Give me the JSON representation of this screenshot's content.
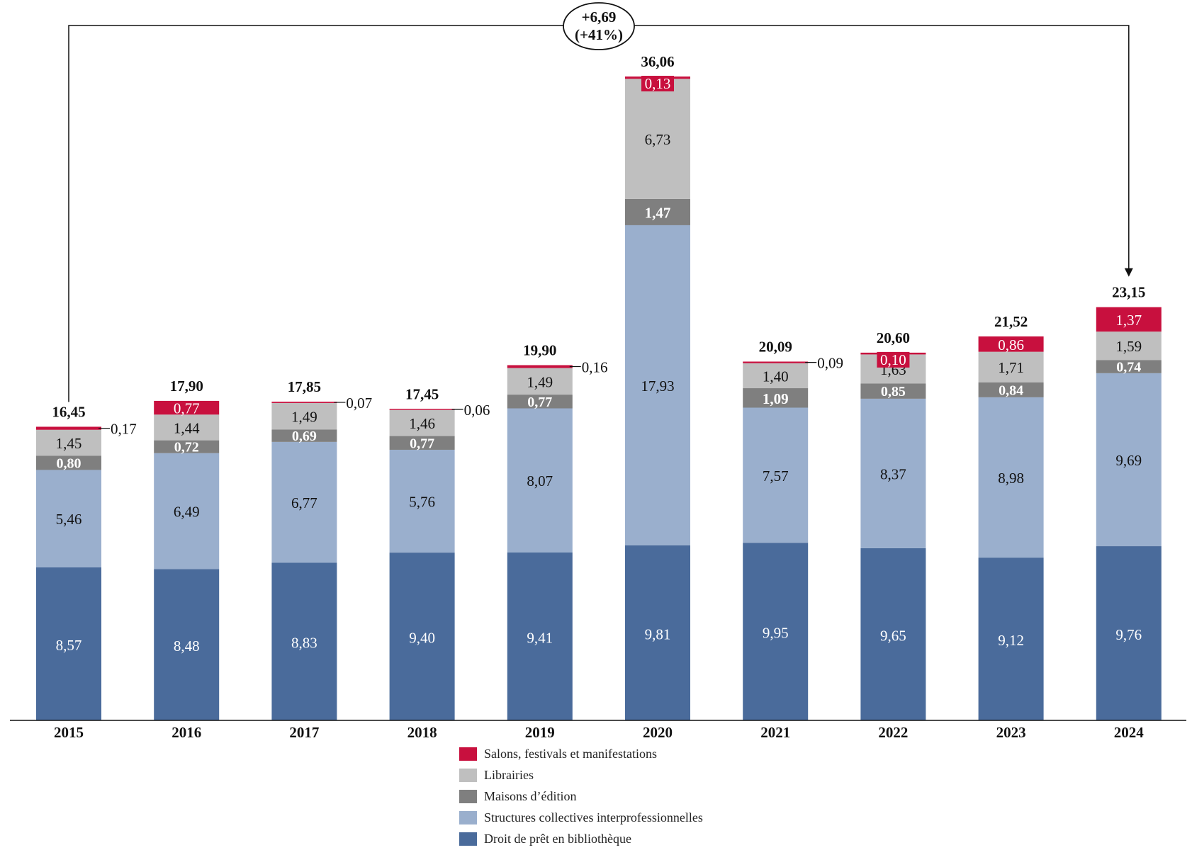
{
  "chart_data": {
    "type": "bar",
    "stacked": true,
    "title": "",
    "xlabel": "",
    "ylabel": "",
    "ylim": [
      0,
      37
    ],
    "grid": false,
    "legend_position": "bottom-center",
    "categories": [
      "2015",
      "2016",
      "2017",
      "2018",
      "2019",
      "2020",
      "2021",
      "2022",
      "2023",
      "2024"
    ],
    "series": [
      {
        "name": "Droit de prêt en bibliothèque",
        "color": "#4a6b9b",
        "values": [
          8.57,
          8.48,
          8.83,
          9.4,
          9.41,
          9.81,
          9.95,
          9.65,
          9.12,
          9.76
        ],
        "labels": [
          "8,57",
          "8,48",
          "8,83",
          "9,40",
          "9,41",
          "9,81",
          "9,95",
          "9,65",
          "9,12",
          "9,76"
        ]
      },
      {
        "name": "Structures collectives interprofessionnelles",
        "color": "#9aafcd",
        "values": [
          5.46,
          6.49,
          6.77,
          5.76,
          8.07,
          17.93,
          7.57,
          8.37,
          8.98,
          9.69
        ],
        "labels": [
          "5,46",
          "6,49",
          "6,77",
          "5,76",
          "8,07",
          "17,93",
          "7,57",
          "8,37",
          "8,98",
          "9,69"
        ]
      },
      {
        "name": "Maisons d’édition",
        "color": "#7f7f7f",
        "values": [
          0.8,
          0.72,
          0.69,
          0.77,
          0.77,
          1.47,
          1.09,
          0.85,
          0.84,
          0.74
        ],
        "labels": [
          "0,80",
          "0,72",
          "0,69",
          "0,77",
          "0,77",
          "1,47",
          "1,09",
          "0,85",
          "0,84",
          "0,74"
        ]
      },
      {
        "name": "Librairies",
        "color": "#bfbfbf",
        "values": [
          1.45,
          1.44,
          1.49,
          1.46,
          1.49,
          6.73,
          1.4,
          1.63,
          1.71,
          1.59
        ],
        "labels": [
          "1,45",
          "1,44",
          "1,49",
          "1,46",
          "1,49",
          "6,73",
          "1,40",
          "1,63",
          "1,71",
          "1,59"
        ]
      },
      {
        "name": "Salons, festivals et manifestations",
        "color": "#c8103e",
        "values": [
          0.17,
          0.77,
          0.07,
          0.06,
          0.16,
          0.13,
          0.09,
          0.1,
          0.86,
          1.37
        ],
        "labels": [
          "0,17",
          "0,77",
          "0,07",
          "0,06",
          "0,16",
          "0,13",
          "0,09",
          "0,10",
          "0,86",
          "1,37"
        ]
      }
    ],
    "totals": [
      16.45,
      17.9,
      17.85,
      17.45,
      19.9,
      36.06,
      20.09,
      20.6,
      21.52,
      23.15
    ],
    "total_labels": [
      "16,45",
      "17,90",
      "17,85",
      "17,45",
      "19,90",
      "36,06",
      "20,09",
      "20,60",
      "21,52",
      "23,15"
    ],
    "annotation": {
      "from": "2015",
      "to": "2024",
      "line1": "+6,69",
      "line2": "(+41%)"
    }
  },
  "legend": {
    "items": [
      {
        "label": "Salons, festivals et manifestations",
        "color": "#c8103e"
      },
      {
        "label": "Librairies",
        "color": "#bfbfbf"
      },
      {
        "label": "Maisons d’édition",
        "color": "#7f7f7f"
      },
      {
        "label": "Structures collectives interprofessionnelles",
        "color": "#9aafcd"
      },
      {
        "label": "Droit de prêt en bibliothèque",
        "color": "#4a6b9b"
      }
    ]
  }
}
